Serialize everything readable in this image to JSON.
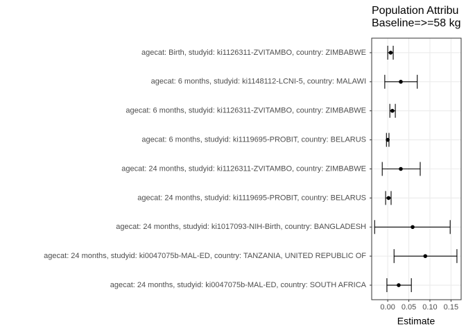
{
  "chart_data": {
    "type": "errorbar",
    "title": "Population Attribu",
    "subtitle": "Baseline=>=58 kg",
    "x_label": "Estimate",
    "categories": [
      "agecat: Birth, studyid: ki1126311-ZVITAMBO, country: ZIMBABWE",
      "agecat: 6 months, studyid: ki1148112-LCNI-5, country: MALAWI",
      "agecat: 6 months, studyid: ki1126311-ZVITAMBO, country: ZIMBABWE",
      "agecat: 6 months, studyid: ki1119695-PROBIT, country: BELARUS",
      "agecat: 24 months, studyid: ki1126311-ZVITAMBO, country: ZIMBABWE",
      "agecat: 24 months, studyid: ki1119695-PROBIT, country: BELARUS",
      "agecat: 24 months, studyid: ki1017093-NIH-Birth, country: BANGLADESH",
      "agecat: 24 months, studyid: ki0047075b-MAL-ED, country: TANZANIA, UNITED REPUBLIC OF",
      "agecat: 24 months, studyid: ki0047075b-MAL-ED, country: SOUTH AFRICA"
    ],
    "values": [
      0.007,
      0.031,
      0.011,
      0.0,
      0.031,
      0.002,
      0.059,
      0.089,
      0.026
    ],
    "lower": [
      0.0,
      -0.007,
      0.005,
      -0.003,
      -0.013,
      -0.005,
      -0.031,
      0.015,
      -0.002
    ],
    "upper": [
      0.013,
      0.07,
      0.018,
      0.003,
      0.077,
      0.008,
      0.148,
      0.164,
      0.056
    ],
    "color": "#000000",
    "xlim": [
      -0.038,
      0.174
    ],
    "xticks": [
      {
        "value": 0,
        "label": "0.00"
      },
      0.05,
      {
        "value": 0.1,
        "label": "0.10"
      },
      0.15
    ],
    "grid": true
  }
}
